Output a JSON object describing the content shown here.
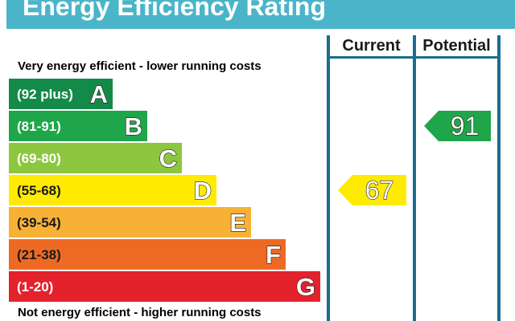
{
  "title": "Energy Efficiency Rating",
  "top_note": "Very energy efficient - lower running costs",
  "bottom_note": "Not energy efficient - higher running costs",
  "chart_data": {
    "type": "bar",
    "bands": [
      {
        "range": "(92 plus)",
        "letter": "A",
        "color": "#138a48",
        "text_color": "#ffffff"
      },
      {
        "range": "(81-91)",
        "letter": "B",
        "color": "#1fa54a",
        "text_color": "#ffffff"
      },
      {
        "range": "(69-80)",
        "letter": "C",
        "color": "#8dc63f",
        "text_color": "#ffffff"
      },
      {
        "range": "(55-68)",
        "letter": "D",
        "color": "#ffeb00",
        "text_color": "#1a1a1a"
      },
      {
        "range": "(39-54)",
        "letter": "E",
        "color": "#f7b236",
        "text_color": "#1a1a1a"
      },
      {
        "range": "(21-38)",
        "letter": "F",
        "color": "#ee6a24",
        "text_color": "#1a1a1a"
      },
      {
        "range": "(1-20)",
        "letter": "G",
        "color": "#e3222c",
        "text_color": "#ffffff"
      }
    ],
    "columns": [
      {
        "label": "Current",
        "value": 67,
        "band": "D",
        "arrow_color": "#ffeb00"
      },
      {
        "label": "Potential",
        "value": 91,
        "band": "B",
        "arrow_color": "#1fa54a"
      }
    ],
    "colors": {
      "header": "#4ab5c8",
      "column_border": "#1a6e8e"
    }
  }
}
